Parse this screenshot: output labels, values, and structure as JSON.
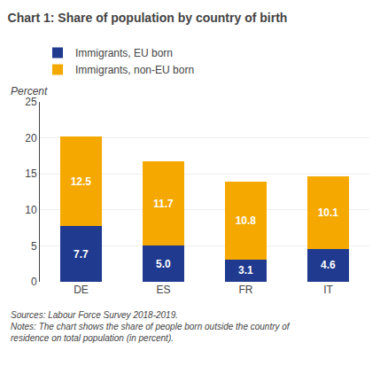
{
  "chart_data": {
    "type": "bar",
    "title": "Chart 1: Share of population by country of birth",
    "ylabel": "Percent",
    "categories": [
      "DE",
      "ES",
      "FR",
      "IT"
    ],
    "series": [
      {
        "name": "Immigrants, EU born",
        "color": "#1f3a8f",
        "values": [
          7.7,
          5.0,
          3.1,
          4.6
        ],
        "value_labels": [
          "7.7",
          "5.0",
          "3.1",
          "4.6"
        ]
      },
      {
        "name": "Immigrants, non-EU born",
        "color": "#f5a800",
        "values": [
          12.5,
          11.7,
          10.8,
          10.1
        ]
      }
    ],
    "stacked": true,
    "data_labels": true,
    "ylim": [
      0,
      25
    ],
    "yticks": [
      0,
      5,
      10,
      15,
      20,
      25
    ],
    "grid": true,
    "legend": "top",
    "annotations": [
      "Sources: Labour Force Survey 2018-2019.\nNotes: The chart shows the share of people born outside the country of\nresidence on total population (in percent)."
    ]
  }
}
